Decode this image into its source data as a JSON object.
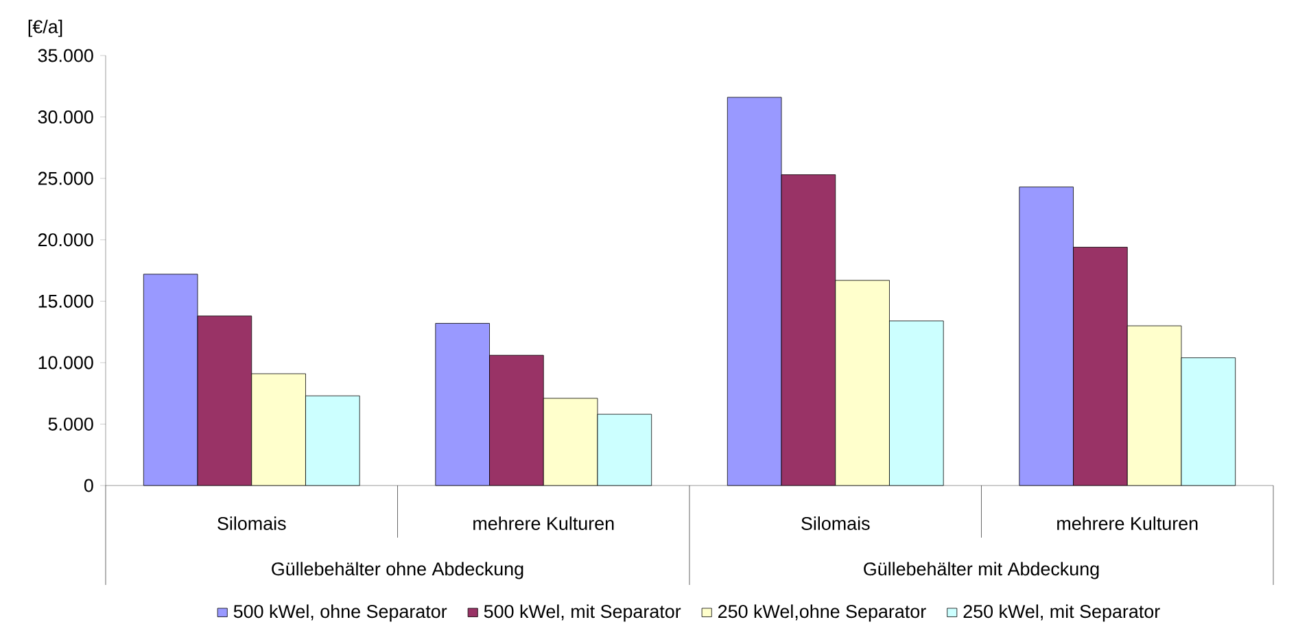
{
  "chart_data": {
    "type": "bar",
    "ylabel": "[€/a]",
    "categories": [
      "Silomais",
      "mehrere Kulturen",
      "Silomais",
      "mehrere Kulturen"
    ],
    "annotations": [
      "Güllebehälter ohne Abdeckung",
      "Güllebehälter mit Abdeckung"
    ],
    "series": [
      {
        "name": "500 kWel, ohne Separator",
        "color": "#9999ff",
        "values": [
          17200,
          13200,
          31600,
          24300
        ]
      },
      {
        "name": "500 kWel, mit Separator",
        "color": "#993366",
        "values": [
          13800,
          10600,
          25300,
          19400
        ]
      },
      {
        "name": "250 kWel,ohne Separator",
        "color": "#ffffcc",
        "values": [
          9100,
          7100,
          16700,
          13000
        ]
      },
      {
        "name": "250 kWel, mit Separator",
        "color": "#ccffff",
        "values": [
          7300,
          5800,
          13400,
          10400
        ]
      }
    ],
    "ylim": [
      0,
      35000
    ],
    "yticks": [
      0,
      {
        "value": 5000,
        "label": "5.000"
      },
      {
        "value": 10000,
        "label": "10.000"
      },
      {
        "value": 15000,
        "label": "15.000"
      },
      {
        "value": 20000,
        "label": "20.000"
      },
      {
        "value": 25000,
        "label": "25.000"
      },
      {
        "value": 30000,
        "label": "30.000"
      },
      {
        "value": 35000,
        "label": "35.000"
      }
    ],
    "legend": "bottom",
    "grid": false
  }
}
